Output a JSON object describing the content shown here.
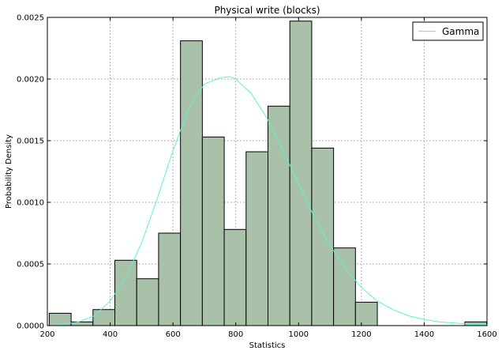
{
  "chart_data": {
    "type": "bar",
    "title": "Physical write (blocks)",
    "xlabel": "Statistics",
    "ylabel": "Probability Density",
    "xlim": [
      200,
      1600
    ],
    "ylim": [
      0,
      0.0025
    ],
    "x_ticks": [
      200,
      400,
      600,
      800,
      1000,
      1200,
      1400,
      1600
    ],
    "y_ticks": [
      0.0,
      0.0005,
      0.001,
      0.0015,
      0.002,
      0.0025
    ],
    "x_tick_labels": [
      "200",
      "400",
      "600",
      "800",
      "1000",
      "1200",
      "1400",
      "1600"
    ],
    "y_tick_labels": [
      "0.0000",
      "0.0005",
      "0.0010",
      "0.0015",
      "0.0020",
      "0.0025"
    ],
    "grid": true,
    "legend_position": "top-right",
    "histogram": {
      "bin_edges": [
        206,
        275.65,
        345.3,
        414.95,
        484.6,
        554.25,
        623.9,
        693.55,
        763.2,
        832.85,
        902.5,
        972.15,
        1041.8,
        1111.45,
        1181.1,
        1250.75,
        1320.4,
        1390.05,
        1459.7,
        1529.35,
        1599
      ],
      "densities": [
        0.0001,
        3e-05,
        0.00013,
        0.00053,
        0.00038,
        0.00075,
        0.00231,
        0.00153,
        0.00078,
        0.00141,
        0.00178,
        0.00247,
        0.00144,
        0.00063,
        0.00019,
        0,
        0,
        0,
        0,
        3e-05
      ],
      "color": "#a9c1a9",
      "edge_color": "#000000"
    },
    "series": [
      {
        "name": "Gamma",
        "type": "line",
        "color": "#5cf2d0",
        "x": [
          206,
          250,
          300,
          350,
          400,
          450,
          500,
          550,
          600,
          650,
          700,
          750,
          780,
          800,
          850,
          900,
          950,
          1000,
          1050,
          1100,
          1150,
          1200,
          1250,
          1300,
          1350,
          1400,
          1450,
          1500,
          1550,
          1599
        ],
        "y": [
          0.0,
          1e-05,
          3e-05,
          8e-05,
          0.0002,
          0.00039,
          0.00067,
          0.00103,
          0.00142,
          0.00176,
          0.00196,
          0.00201,
          0.00202,
          0.002,
          0.00188,
          0.00168,
          0.00142,
          0.00115,
          0.00088,
          0.00065,
          0.00046,
          0.00031,
          0.0002,
          0.00013,
          8e-05,
          5e-05,
          3e-05,
          2e-05,
          1e-05,
          1e-05
        ]
      }
    ]
  },
  "colors": {
    "background": "#ffffff",
    "axes_edge": "#000000",
    "grid": "#b0b0b0"
  }
}
